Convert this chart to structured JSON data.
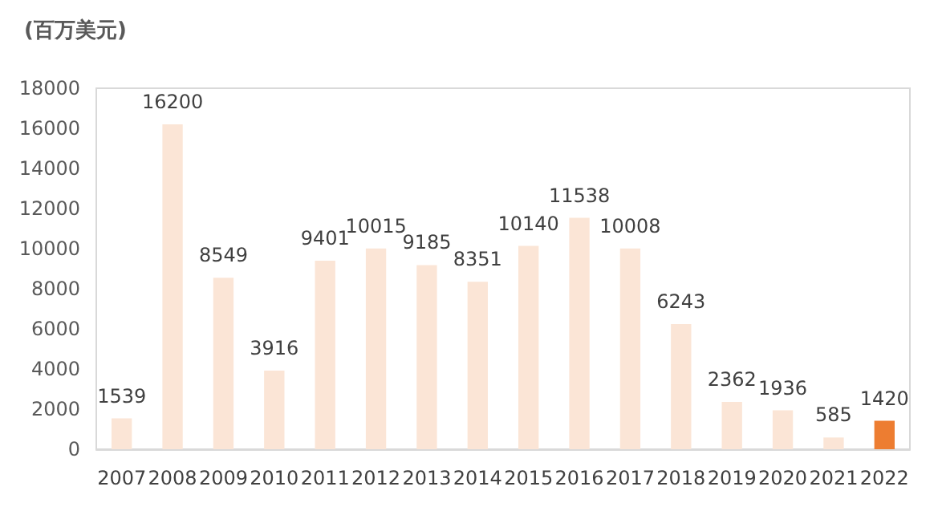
{
  "chart_data": {
    "type": "bar",
    "ylabel": "(百万美元)",
    "categories": [
      "2007",
      "2008",
      "2009",
      "2010",
      "2011",
      "2012",
      "2013",
      "2014",
      "2015",
      "2016",
      "2017",
      "2018",
      "2019",
      "2020",
      "2021",
      "2022"
    ],
    "values": [
      1539,
      16200,
      8549,
      3916,
      9401,
      10015,
      9185,
      8351,
      10140,
      11538,
      10008,
      6243,
      2362,
      1936,
      585,
      1420
    ],
    "colors": [
      "#fbe5d6",
      "#fbe5d6",
      "#fbe5d6",
      "#fbe5d6",
      "#fbe5d6",
      "#fbe5d6",
      "#fbe5d6",
      "#fbe5d6",
      "#fbe5d6",
      "#fbe5d6",
      "#fbe5d6",
      "#fbe5d6",
      "#fbe5d6",
      "#fbe5d6",
      "#fbe5d6",
      "#ed7d31"
    ],
    "ylim": [
      0,
      18000
    ],
    "yticks": [
      0,
      2000,
      4000,
      6000,
      8000,
      10000,
      12000,
      14000,
      16000,
      18000
    ],
    "grid": false,
    "data_labels": true
  }
}
